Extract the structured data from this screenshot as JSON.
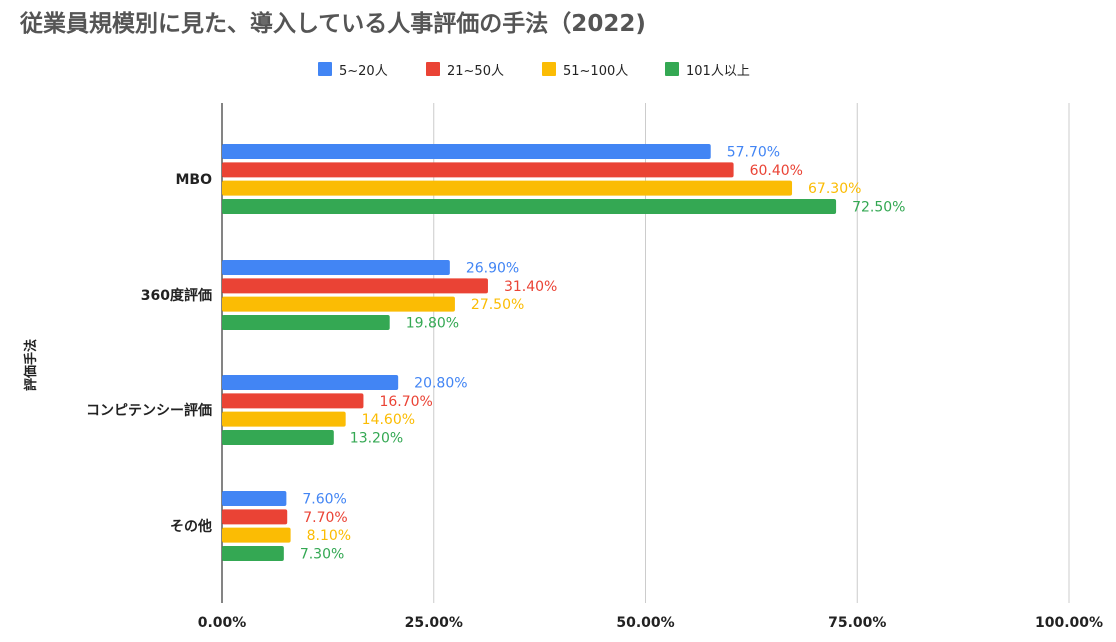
{
  "chart_data": {
    "type": "bar",
    "orientation": "horizontal",
    "title": "従業員規模別に見た、導入している人事評価の手法（2022)",
    "ylabel": "評価手法",
    "xlabel": "",
    "categories": [
      "MBO",
      "360度評価",
      "コンピテンシー評価",
      "その他"
    ],
    "series": [
      {
        "name": "5~20人",
        "color": "#4285f4",
        "values": [
          57.7,
          26.9,
          20.8,
          7.6
        ],
        "labels": [
          "57.70%",
          "26.90%",
          "20.80%",
          "7.60%"
        ]
      },
      {
        "name": "21~50人",
        "color": "#ea4335",
        "values": [
          60.4,
          31.4,
          16.7,
          7.7
        ],
        "labels": [
          "60.40%",
          "31.40%",
          "16.70%",
          "7.70%"
        ]
      },
      {
        "name": "51~100人",
        "color": "#fbbc04",
        "values": [
          67.3,
          27.5,
          14.6,
          8.1
        ],
        "labels": [
          "67.30%",
          "27.50%",
          "14.60%",
          "8.10%"
        ]
      },
      {
        "name": "101人以上",
        "color": "#34a853",
        "values": [
          72.5,
          19.8,
          13.2,
          7.3
        ],
        "labels": [
          "72.50%",
          "19.80%",
          "13.20%",
          "7.30%"
        ]
      }
    ],
    "xlim": [
      0,
      100
    ],
    "ticks": [
      0,
      25,
      50,
      75,
      100
    ],
    "tick_labels": [
      "0.00%",
      "25.00%",
      "50.00%",
      "75.00%",
      "100.00%"
    ],
    "grid": true,
    "legend_position": "top"
  }
}
